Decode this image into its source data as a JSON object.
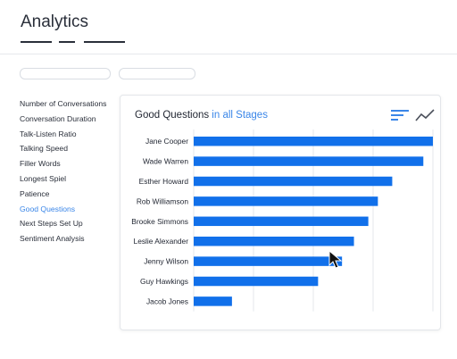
{
  "header": {
    "title": "Analytics"
  },
  "sidebar": {
    "items": [
      {
        "label": "Number of Conversations",
        "active": false
      },
      {
        "label": "Conversation Duration",
        "active": false
      },
      {
        "label": "Talk-Listen Ratio",
        "active": false
      },
      {
        "label": "Talking Speed",
        "active": false
      },
      {
        "label": "Filler Words",
        "active": false
      },
      {
        "label": "Longest Spiel",
        "active": false
      },
      {
        "label": "Patience",
        "active": false
      },
      {
        "label": "Good Questions",
        "active": true
      },
      {
        "label": "Next Steps Set Up",
        "active": false
      },
      {
        "label": "Sentiment Analysis",
        "active": false
      }
    ]
  },
  "card": {
    "title_main": "Good Questions",
    "title_accent": " in all Stages",
    "icons": [
      "sort-icon",
      "line-chart-icon"
    ]
  },
  "colors": {
    "bar": "#1170ea",
    "accent": "#3a86e8",
    "grid": "#e4e7eb"
  },
  "chart_data": {
    "type": "bar",
    "orientation": "horizontal",
    "categories": [
      "Jane Cooper",
      "Wade Warren",
      "Esther Howard",
      "Rob Williamson",
      "Brooke Simmons",
      "Leslie Alexander",
      "Jenny Wilson",
      "Guy Hawkings",
      "Jacob Jones"
    ],
    "values": [
      100,
      96,
      83,
      77,
      73,
      67,
      62,
      52,
      16
    ],
    "xlim": [
      0,
      100
    ],
    "grid": true
  }
}
